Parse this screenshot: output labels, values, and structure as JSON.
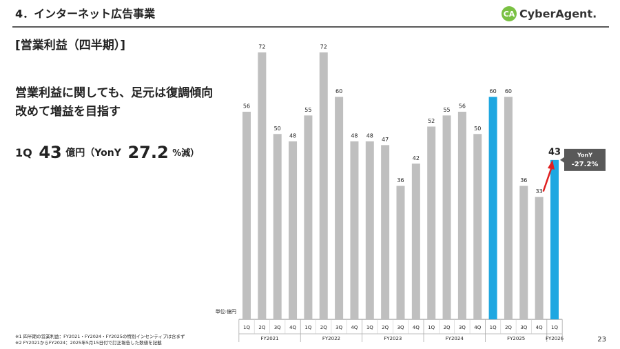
{
  "header": {
    "title": "4．インターネット広告事業",
    "logo_mark": "CA",
    "logo_name": "CyberAgent."
  },
  "subtitle": "[営業利益（四半期）]",
  "headline": [
    "営業利益に関しても、足元は復調傾向",
    "改めて増益を目指す"
  ],
  "summary": {
    "quarter": "1Q",
    "amount": "43",
    "amount_unit": "億円（YonY",
    "rate": "27.2",
    "rate_unit": "%減）"
  },
  "footnotes": [
    "※1  四半期の営業利益：FY2021・FY2024・FY2025の特別インセンティブは含まず",
    "※2  FY2021からFY2024：2025年5月15日付で訂正報告した数値を記載"
  ],
  "page_number": "23",
  "chart_data": {
    "type": "bar",
    "unit_label": "単位:億円",
    "groups": [
      {
        "name": "FY2021",
        "categories": [
          "1Q",
          "2Q",
          "3Q",
          "4Q"
        ],
        "values": [
          56,
          72,
          50,
          48
        ],
        "colors": [
          "#bfbfbf",
          "#bfbfbf",
          "#bfbfbf",
          "#bfbfbf"
        ]
      },
      {
        "name": "FY2022",
        "categories": [
          "1Q",
          "2Q",
          "3Q",
          "4Q"
        ],
        "values": [
          55,
          72,
          60,
          48
        ],
        "colors": [
          "#bfbfbf",
          "#bfbfbf",
          "#bfbfbf",
          "#bfbfbf"
        ]
      },
      {
        "name": "FY2023",
        "categories": [
          "1Q",
          "2Q",
          "3Q",
          "4Q"
        ],
        "values": [
          48,
          47,
          36,
          42
        ],
        "colors": [
          "#bfbfbf",
          "#bfbfbf",
          "#bfbfbf",
          "#bfbfbf"
        ]
      },
      {
        "name": "FY2024",
        "categories": [
          "1Q",
          "2Q",
          "3Q",
          "4Q"
        ],
        "values": [
          52,
          55,
          56,
          50
        ],
        "colors": [
          "#bfbfbf",
          "#bfbfbf",
          "#bfbfbf",
          "#bfbfbf"
        ]
      },
      {
        "name": "FY2025",
        "categories": [
          "1Q",
          "2Q",
          "3Q",
          "4Q"
        ],
        "values": [
          60,
          60,
          36,
          33
        ],
        "colors": [
          "#1ea7e1",
          "#bfbfbf",
          "#bfbfbf",
          "#bfbfbf"
        ]
      },
      {
        "name": "FY2026",
        "categories": [
          "1Q"
        ],
        "values": [
          43
        ],
        "colors": [
          "#1ea7e1"
        ]
      }
    ],
    "badge": [
      "YonY",
      "-27.2%"
    ]
  }
}
